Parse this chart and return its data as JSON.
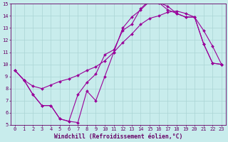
{
  "xlabel": "Windchill (Refroidissement éolien,°C)",
  "bg_color": "#c8ecec",
  "grid_color": "#aad4d4",
  "line_color": "#990099",
  "line_width": 0.8,
  "marker": "D",
  "marker_size": 2.0,
  "xlim": [
    -0.5,
    23.5
  ],
  "ylim": [
    5,
    15
  ],
  "xticks": [
    0,
    1,
    2,
    3,
    4,
    5,
    6,
    7,
    8,
    9,
    10,
    11,
    12,
    13,
    14,
    15,
    16,
    17,
    18,
    19,
    20,
    21,
    22,
    23
  ],
  "yticks": [
    5,
    6,
    7,
    8,
    9,
    10,
    11,
    12,
    13,
    14,
    15
  ],
  "curve1_x": [
    0,
    1,
    2,
    3,
    4,
    5,
    6,
    7,
    8,
    9,
    10,
    11,
    12,
    13,
    14,
    15,
    16,
    17,
    18,
    19,
    20,
    21,
    22,
    23
  ],
  "curve1_y": [
    9.5,
    8.7,
    7.5,
    6.6,
    6.6,
    5.5,
    5.3,
    5.2,
    7.8,
    7.0,
    9.0,
    11.0,
    13.0,
    13.9,
    14.5,
    15.2,
    15.1,
    14.8,
    14.2,
    13.9,
    13.9,
    11.7,
    10.1,
    10.0
  ],
  "curve2_x": [
    0,
    1,
    2,
    3,
    4,
    5,
    6,
    7,
    8,
    9,
    10,
    11,
    12,
    13,
    14,
    15,
    16,
    17,
    18,
    19,
    20,
    21,
    22,
    23
  ],
  "curve2_y": [
    9.5,
    8.7,
    8.2,
    8.0,
    8.3,
    8.6,
    8.8,
    9.1,
    9.5,
    9.8,
    10.3,
    11.0,
    11.8,
    12.5,
    13.3,
    13.8,
    14.0,
    14.3,
    14.4,
    14.2,
    13.9,
    12.8,
    11.5,
    10.0
  ],
  "curve3_x": [
    0,
    1,
    2,
    3,
    4,
    5,
    6,
    7,
    8,
    9,
    10,
    11,
    12,
    13,
    14,
    15,
    16,
    17,
    18,
    19,
    20,
    21,
    22,
    23
  ],
  "curve3_y": [
    9.5,
    8.7,
    7.5,
    6.6,
    6.6,
    5.5,
    5.3,
    7.5,
    8.5,
    9.2,
    10.8,
    11.2,
    12.8,
    13.3,
    14.6,
    15.3,
    15.1,
    14.5,
    14.2,
    13.9,
    13.9,
    11.7,
    10.1,
    10.0
  ],
  "axis_color": "#660066",
  "tick_label_color": "#660066",
  "xlabel_color": "#660066",
  "tick_fontsize": 5.0,
  "xlabel_fontsize": 5.8
}
